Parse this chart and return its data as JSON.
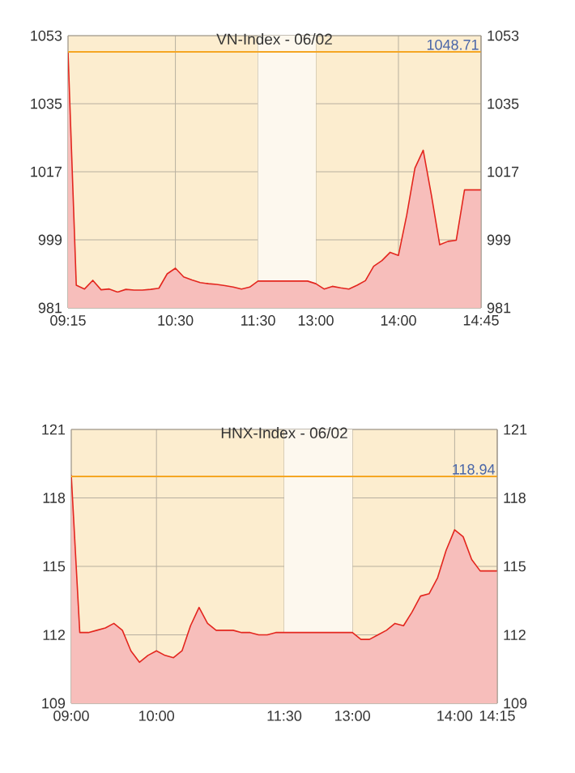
{
  "chart_data": [
    {
      "type": "area",
      "title": "VN-Index - 06/02",
      "color": "#e3261e",
      "categories": [
        "09:15",
        null,
        null,
        null,
        null,
        null,
        null,
        null,
        null,
        null,
        null,
        null,
        null,
        "10:30",
        null,
        null,
        null,
        null,
        null,
        null,
        null,
        null,
        null,
        "11:30",
        null,
        null,
        null,
        null,
        null,
        null,
        "13:00",
        null,
        null,
        null,
        null,
        null,
        null,
        null,
        null,
        null,
        "14:00",
        null,
        null,
        null,
        null,
        null,
        null,
        null,
        null,
        null,
        "14:45"
      ],
      "values": [
        1048.7,
        987,
        986,
        988.3,
        985.8,
        986,
        985.2,
        985.9,
        985.7,
        985.7,
        985.9,
        986.2,
        990,
        991.5,
        989.2,
        988.4,
        987.7,
        987.4,
        987.2,
        986.9,
        986.5,
        986,
        986.5,
        988.1,
        988.1,
        988.1,
        988.1,
        988.1,
        988.1,
        988.1,
        987.4,
        986,
        986.7,
        986.3,
        986,
        987,
        988.2,
        992,
        993.5,
        995.7,
        994.9,
        1005.5,
        1018,
        1022.7,
        1010.7,
        997.7,
        998.6,
        998.9,
        1012.2,
        1012.2,
        1012.2
      ],
      "ylim": [
        981,
        1053
      ],
      "yticks": [
        981,
        999,
        1017,
        1035,
        1053
      ],
      "y2lim": [
        981,
        1053
      ],
      "y2ticks": [
        981,
        999,
        1017,
        1035,
        1053
      ],
      "grid": true,
      "ref_lines": [
        {
          "axis": "y",
          "value": 1048.71,
          "label": "1048.71",
          "color": "#f5a623"
        }
      ],
      "bands": [
        {
          "axis": "x",
          "from": "11:30",
          "to": "13:00",
          "color": "#fdf8ee"
        }
      ]
    },
    {
      "type": "area",
      "title": "HNX-Index - 06/02",
      "color": "#e3261e",
      "categories": [
        "09:00",
        null,
        null,
        null,
        null,
        null,
        null,
        null,
        null,
        null,
        "10:00",
        null,
        null,
        null,
        null,
        null,
        null,
        null,
        null,
        null,
        null,
        null,
        null,
        null,
        null,
        "11:30",
        null,
        null,
        null,
        null,
        null,
        null,
        null,
        "13:00",
        null,
        null,
        null,
        null,
        null,
        null,
        null,
        null,
        null,
        null,
        null,
        "14:00",
        null,
        null,
        null,
        null,
        "14:15"
      ],
      "values": [
        119,
        112.1,
        112.1,
        112.2,
        112.3,
        112.5,
        112.2,
        111.3,
        110.8,
        111.1,
        111.3,
        111.1,
        111,
        111.3,
        112.4,
        113.2,
        112.5,
        112.2,
        112.2,
        112.2,
        112.1,
        112.1,
        112,
        112,
        112.1,
        112.1,
        112.1,
        112.1,
        112.1,
        112.1,
        112.1,
        112.1,
        112.1,
        112.1,
        111.8,
        111.8,
        112,
        112.2,
        112.5,
        112.4,
        113,
        113.7,
        113.8,
        114.5,
        115.7,
        116.6,
        116.3,
        115.3,
        114.8,
        114.8,
        114.8
      ],
      "ylim": [
        109,
        121
      ],
      "yticks": [
        109,
        112,
        115,
        118,
        121
      ],
      "y2lim": [
        109,
        121
      ],
      "y2ticks": [
        109,
        112,
        115,
        118,
        121
      ],
      "grid": true,
      "ref_lines": [
        {
          "axis": "y",
          "value": 118.94,
          "label": "118.94",
          "color": "#f5a623"
        }
      ],
      "bands": [
        {
          "axis": "x",
          "from": "11:30",
          "to": "13:00",
          "color": "#fdf8ee"
        }
      ]
    }
  ]
}
